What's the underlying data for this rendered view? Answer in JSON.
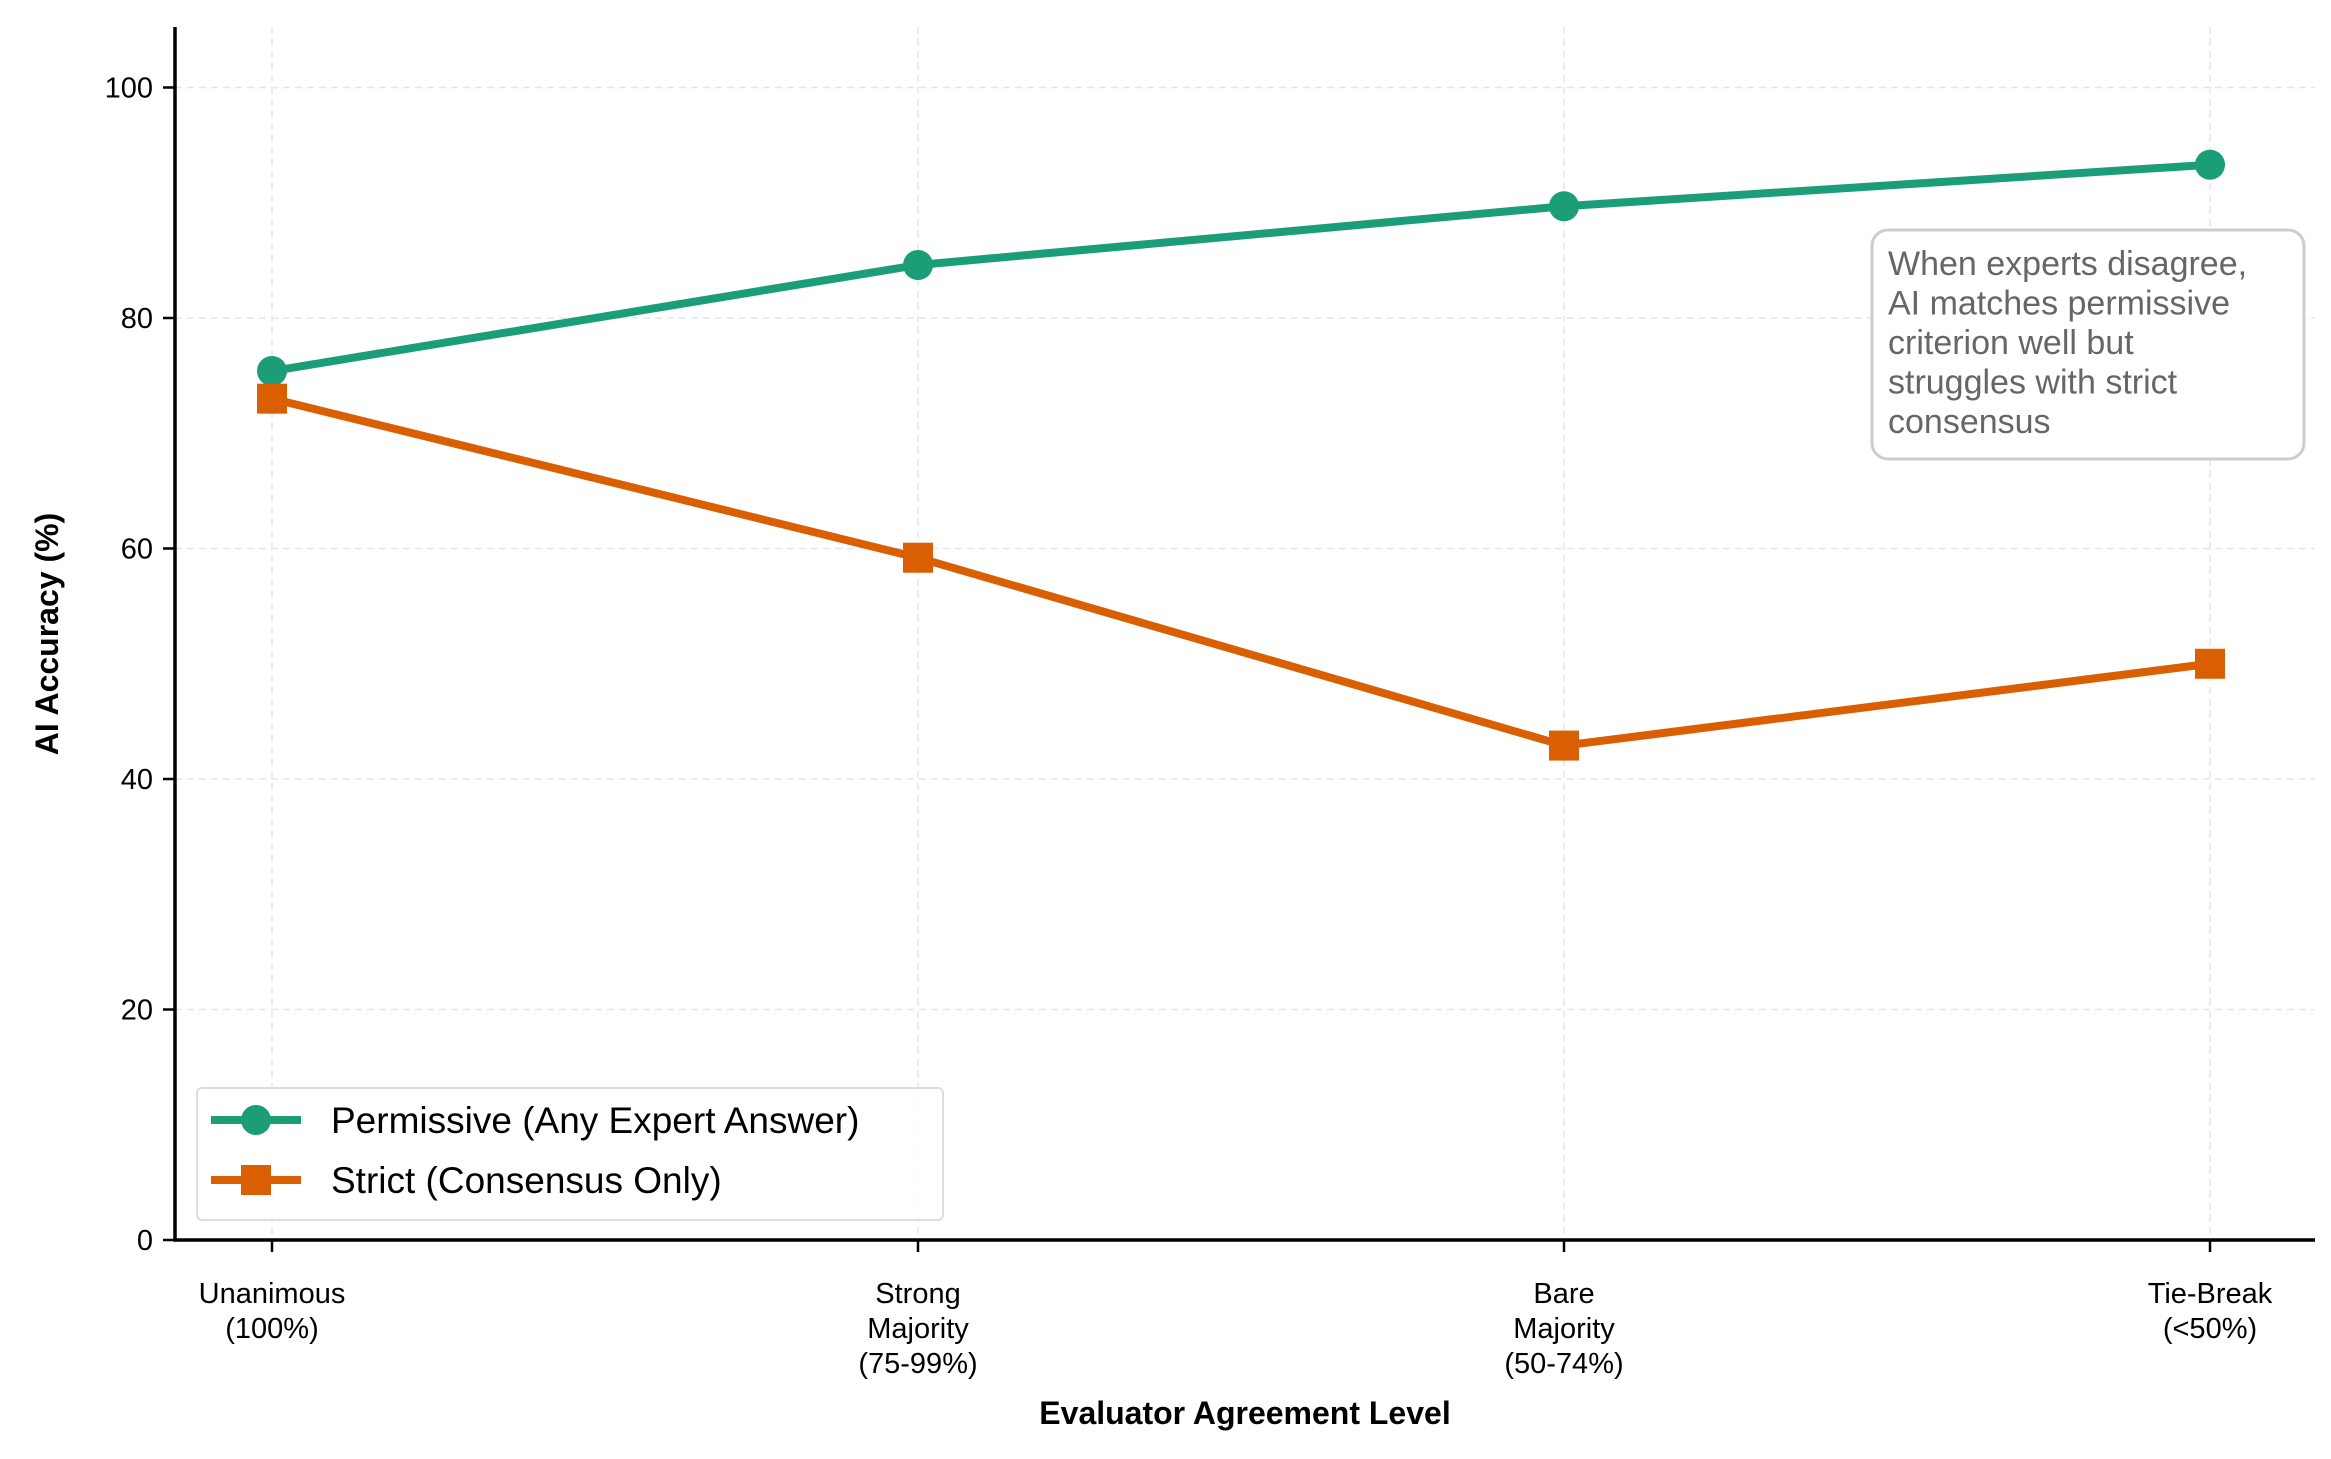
{
  "chart_data": {
    "type": "line",
    "title": "",
    "xlabel": "Evaluator Agreement Level",
    "ylabel": "AI Accuracy (%)",
    "ylim": [
      0,
      105
    ],
    "yticks": [
      0,
      20,
      40,
      60,
      80,
      100
    ],
    "grid": true,
    "categories": [
      [
        "Unanimous",
        "(100%)"
      ],
      [
        "Strong",
        "Majority",
        "(75-99%)"
      ],
      [
        "Bare",
        "Majority",
        "(50-74%)"
      ],
      [
        "Tie-Break",
        "(<50%)"
      ]
    ],
    "series": [
      {
        "name": "Permissive (Any Expert Answer)",
        "color": "#1b9e77",
        "marker": "circle",
        "values": [
          75.4,
          84.6,
          89.7,
          93.3
        ]
      },
      {
        "name": "Strict (Consensus Only)",
        "color": "#d95f02",
        "marker": "square",
        "values": [
          73.0,
          59.2,
          42.9,
          50.0
        ]
      }
    ],
    "legend_position": "lower-left",
    "annotation": {
      "lines": [
        "When experts disagree,",
        "AI matches permissive",
        "criterion well but",
        "struggles with strict",
        "consensus"
      ],
      "position": "upper-right"
    }
  }
}
